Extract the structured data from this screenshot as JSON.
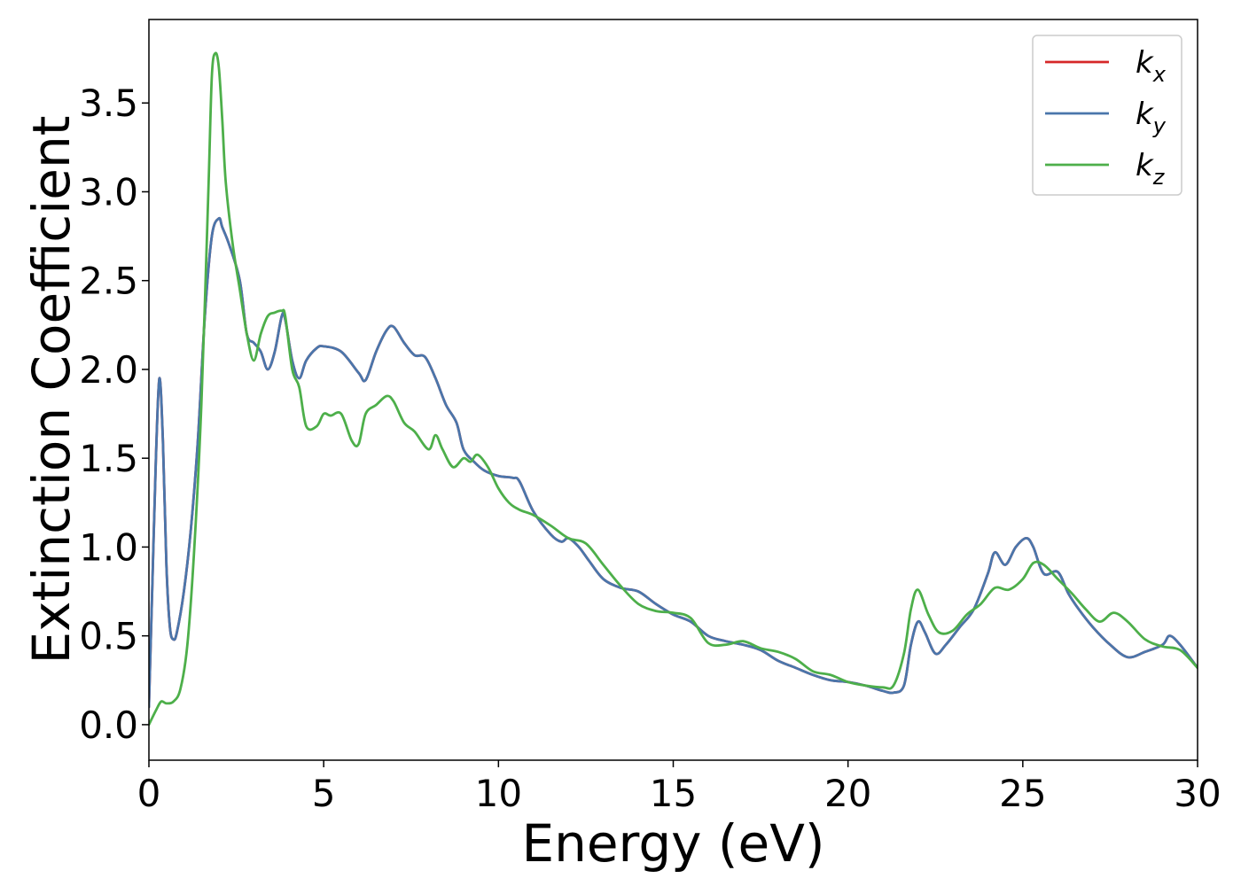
{
  "chart_data": {
    "type": "line",
    "xlabel": "Energy (eV)",
    "ylabel": "Extinction Coefficient",
    "xlim": [
      0,
      30
    ],
    "ylim": [
      -0.2,
      3.97
    ],
    "xticks": [
      0,
      5,
      10,
      15,
      20,
      25,
      30
    ],
    "xtick_labels": [
      "0",
      "5",
      "10",
      "15",
      "20",
      "25",
      "30"
    ],
    "yticks": [
      0.0,
      0.5,
      1.0,
      1.5,
      2.0,
      2.5,
      3.0,
      3.5
    ],
    "ytick_labels": [
      "0.0",
      "0.5",
      "1.0",
      "1.5",
      "2.0",
      "2.5",
      "3.0",
      "3.5"
    ],
    "grid": false,
    "legend_position": "top-right",
    "series": [
      {
        "name": "k_x",
        "legend_base": "k",
        "legend_sub": "x",
        "color": "#d62728",
        "x": [
          0,
          0.1,
          0.2,
          0.3,
          0.4,
          0.5,
          0.6,
          0.7,
          0.8,
          1.0,
          1.2,
          1.4,
          1.6,
          1.8,
          2.0,
          2.1,
          2.3,
          2.6,
          2.8,
          3.0,
          3.2,
          3.4,
          3.6,
          3.8,
          3.9,
          4.1,
          4.3,
          4.5,
          4.8,
          5.0,
          5.5,
          6.0,
          6.2,
          6.5,
          6.8,
          7.0,
          7.3,
          7.6,
          7.9,
          8.2,
          8.5,
          8.8,
          9.0,
          9.3,
          9.6,
          10.0,
          10.4,
          10.6,
          11.0,
          11.5,
          11.8,
          12.0,
          12.3,
          12.6,
          13.0,
          13.5,
          14.0,
          14.5,
          15.0,
          15.5,
          16.0,
          16.5,
          17.0,
          17.5,
          18.0,
          18.5,
          19.0,
          19.5,
          20.0,
          20.5,
          21.0,
          21.3,
          21.6,
          21.8,
          22.0,
          22.2,
          22.5,
          22.8,
          23.2,
          23.6,
          24.0,
          24.2,
          24.5,
          24.8,
          25.1,
          25.3,
          25.6,
          26.0,
          26.3,
          26.6,
          27.0,
          27.5,
          28.0,
          28.5,
          29.0,
          29.2,
          29.5,
          30.0
        ],
        "y": [
          0.1,
          0.8,
          1.5,
          1.95,
          1.6,
          0.9,
          0.55,
          0.48,
          0.52,
          0.75,
          1.1,
          1.6,
          2.3,
          2.75,
          2.85,
          2.8,
          2.7,
          2.5,
          2.2,
          2.15,
          2.1,
          2.0,
          2.1,
          2.3,
          2.28,
          2.05,
          1.95,
          2.05,
          2.12,
          2.13,
          2.1,
          1.98,
          1.94,
          2.1,
          2.22,
          2.24,
          2.15,
          2.08,
          2.07,
          1.95,
          1.8,
          1.7,
          1.55,
          1.48,
          1.43,
          1.4,
          1.39,
          1.37,
          1.2,
          1.07,
          1.03,
          1.05,
          1.0,
          0.92,
          0.82,
          0.77,
          0.75,
          0.68,
          0.62,
          0.58,
          0.5,
          0.47,
          0.45,
          0.42,
          0.36,
          0.32,
          0.28,
          0.25,
          0.24,
          0.22,
          0.19,
          0.18,
          0.22,
          0.45,
          0.58,
          0.52,
          0.4,
          0.45,
          0.55,
          0.65,
          0.85,
          0.97,
          0.9,
          1.0,
          1.05,
          1.0,
          0.85,
          0.86,
          0.74,
          0.65,
          0.55,
          0.45,
          0.38,
          0.41,
          0.45,
          0.5,
          0.45,
          0.32
        ]
      },
      {
        "name": "k_y",
        "legend_base": "k",
        "legend_sub": "y",
        "color": "#4a76ab",
        "x": [
          0,
          0.1,
          0.2,
          0.3,
          0.4,
          0.5,
          0.6,
          0.7,
          0.8,
          1.0,
          1.2,
          1.4,
          1.6,
          1.8,
          2.0,
          2.1,
          2.3,
          2.6,
          2.8,
          3.0,
          3.2,
          3.4,
          3.6,
          3.8,
          3.9,
          4.1,
          4.3,
          4.5,
          4.8,
          5.0,
          5.5,
          6.0,
          6.2,
          6.5,
          6.8,
          7.0,
          7.3,
          7.6,
          7.9,
          8.2,
          8.5,
          8.8,
          9.0,
          9.3,
          9.6,
          10.0,
          10.4,
          10.6,
          11.0,
          11.5,
          11.8,
          12.0,
          12.3,
          12.6,
          13.0,
          13.5,
          14.0,
          14.5,
          15.0,
          15.5,
          16.0,
          16.5,
          17.0,
          17.5,
          18.0,
          18.5,
          19.0,
          19.5,
          20.0,
          20.5,
          21.0,
          21.3,
          21.6,
          21.8,
          22.0,
          22.2,
          22.5,
          22.8,
          23.2,
          23.6,
          24.0,
          24.2,
          24.5,
          24.8,
          25.1,
          25.3,
          25.6,
          26.0,
          26.3,
          26.6,
          27.0,
          27.5,
          28.0,
          28.5,
          29.0,
          29.2,
          29.5,
          30.0
        ],
        "y": [
          0.1,
          0.8,
          1.5,
          1.95,
          1.6,
          0.9,
          0.55,
          0.48,
          0.52,
          0.75,
          1.1,
          1.6,
          2.3,
          2.75,
          2.85,
          2.8,
          2.7,
          2.5,
          2.2,
          2.15,
          2.1,
          2.0,
          2.1,
          2.3,
          2.28,
          2.05,
          1.95,
          2.05,
          2.12,
          2.13,
          2.1,
          1.98,
          1.94,
          2.1,
          2.22,
          2.24,
          2.15,
          2.08,
          2.07,
          1.95,
          1.8,
          1.7,
          1.55,
          1.48,
          1.43,
          1.4,
          1.39,
          1.37,
          1.2,
          1.07,
          1.03,
          1.05,
          1.0,
          0.92,
          0.82,
          0.77,
          0.75,
          0.68,
          0.62,
          0.58,
          0.5,
          0.47,
          0.45,
          0.42,
          0.36,
          0.32,
          0.28,
          0.25,
          0.24,
          0.22,
          0.19,
          0.18,
          0.22,
          0.45,
          0.58,
          0.52,
          0.4,
          0.45,
          0.55,
          0.65,
          0.85,
          0.97,
          0.9,
          1.0,
          1.05,
          1.0,
          0.85,
          0.86,
          0.74,
          0.65,
          0.55,
          0.45,
          0.38,
          0.41,
          0.45,
          0.5,
          0.45,
          0.32
        ]
      },
      {
        "name": "k_z",
        "legend_base": "k",
        "legend_sub": "z",
        "color": "#4daf4a",
        "x": [
          0,
          0.2,
          0.35,
          0.5,
          0.7,
          0.9,
          1.1,
          1.3,
          1.5,
          1.7,
          1.8,
          1.9,
          2.0,
          2.1,
          2.2,
          2.4,
          2.6,
          2.8,
          3.0,
          3.2,
          3.4,
          3.6,
          3.8,
          3.9,
          4.1,
          4.3,
          4.5,
          4.8,
          5.0,
          5.2,
          5.5,
          5.8,
          6.0,
          6.2,
          6.5,
          6.8,
          7.0,
          7.3,
          7.6,
          8.0,
          8.2,
          8.4,
          8.7,
          9.0,
          9.2,
          9.4,
          9.7,
          10.0,
          10.3,
          10.6,
          11.0,
          11.5,
          12.0,
          12.5,
          13.0,
          13.5,
          14.0,
          14.5,
          15.0,
          15.5,
          16.0,
          16.5,
          17.0,
          17.5,
          18.0,
          18.5,
          19.0,
          19.5,
          20.0,
          20.5,
          21.0,
          21.3,
          21.6,
          21.8,
          22.0,
          22.3,
          22.6,
          23.0,
          23.4,
          23.8,
          24.2,
          24.6,
          25.0,
          25.3,
          25.6,
          26.0,
          26.4,
          26.8,
          27.2,
          27.6,
          28.0,
          28.5,
          29.0,
          29.5,
          30.0
        ],
        "y": [
          0.0,
          0.08,
          0.13,
          0.12,
          0.13,
          0.2,
          0.45,
          1.0,
          1.8,
          3.0,
          3.65,
          3.78,
          3.7,
          3.4,
          3.05,
          2.7,
          2.45,
          2.2,
          2.05,
          2.2,
          2.3,
          2.32,
          2.33,
          2.3,
          2.0,
          1.9,
          1.68,
          1.68,
          1.75,
          1.74,
          1.75,
          1.6,
          1.58,
          1.75,
          1.8,
          1.85,
          1.82,
          1.7,
          1.65,
          1.55,
          1.63,
          1.55,
          1.45,
          1.5,
          1.48,
          1.52,
          1.45,
          1.33,
          1.25,
          1.21,
          1.18,
          1.12,
          1.05,
          1.02,
          0.9,
          0.78,
          0.68,
          0.64,
          0.63,
          0.6,
          0.46,
          0.45,
          0.47,
          0.43,
          0.41,
          0.37,
          0.3,
          0.28,
          0.24,
          0.22,
          0.21,
          0.22,
          0.4,
          0.65,
          0.76,
          0.62,
          0.52,
          0.53,
          0.62,
          0.68,
          0.77,
          0.76,
          0.82,
          0.91,
          0.9,
          0.82,
          0.74,
          0.65,
          0.58,
          0.63,
          0.58,
          0.48,
          0.44,
          0.42,
          0.32
        ]
      }
    ]
  }
}
